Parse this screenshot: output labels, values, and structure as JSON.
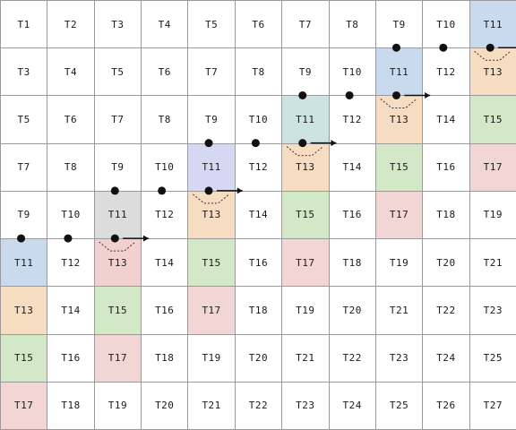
{
  "grid": {
    "cols": 11,
    "rows": 9,
    "cells": [
      [
        "T1",
        "T2",
        "T3",
        "T4",
        "T5",
        "T6",
        "T7",
        "T8",
        "T9",
        "T10",
        "T11"
      ],
      [
        "T3",
        "T4",
        "T5",
        "T6",
        "T7",
        "T8",
        "T9",
        "T10",
        "T11",
        "T12",
        "T13"
      ],
      [
        "T5",
        "T6",
        "T7",
        "T8",
        "T9",
        "T10",
        "T11",
        "T12",
        "T13",
        "T14",
        "T15"
      ],
      [
        "T7",
        "T8",
        "T9",
        "T10",
        "T11",
        "T12",
        "T13",
        "T14",
        "T15",
        "T16",
        "T17"
      ],
      [
        "T9",
        "T10",
        "T11",
        "T12",
        "T13",
        "T14",
        "T15",
        "T16",
        "T17",
        "T18",
        "T19"
      ],
      [
        "T11",
        "T12",
        "T13",
        "T14",
        "T15",
        "T16",
        "T17",
        "T18",
        "T19",
        "T20",
        "T21"
      ],
      [
        "T13",
        "T14",
        "T15",
        "T16",
        "T17",
        "T18",
        "T19",
        "T20",
        "T21",
        "T22",
        "T23"
      ],
      [
        "T15",
        "T16",
        "T17",
        "T18",
        "T19",
        "T20",
        "T21",
        "T22",
        "T23",
        "T24",
        "T25"
      ],
      [
        "T17",
        "T18",
        "T19",
        "T20",
        "T21",
        "T22",
        "T23",
        "T24",
        "T25",
        "T26",
        "T27"
      ]
    ],
    "highlights": [
      {
        "row": 0,
        "col": 10,
        "color": "#c9d9ee"
      },
      {
        "row": 1,
        "col": 8,
        "color": "#c9d9ee"
      },
      {
        "row": 1,
        "col": 10,
        "color": "#f6dcc0"
      },
      {
        "row": 2,
        "col": 6,
        "color": "#cde3e3"
      },
      {
        "row": 2,
        "col": 8,
        "color": "#f6dcc0"
      },
      {
        "row": 2,
        "col": 10,
        "color": "#d3e8c6"
      },
      {
        "row": 3,
        "col": 4,
        "color": "#d5d8f2"
      },
      {
        "row": 3,
        "col": 6,
        "color": "#f6dcc0"
      },
      {
        "row": 3,
        "col": 8,
        "color": "#d3e8c6"
      },
      {
        "row": 3,
        "col": 10,
        "color": "#f2d5d5"
      },
      {
        "row": 4,
        "col": 2,
        "color": "#dcdcdc"
      },
      {
        "row": 4,
        "col": 4,
        "color": "#f6dcc0"
      },
      {
        "row": 4,
        "col": 6,
        "color": "#d3e8c6"
      },
      {
        "row": 4,
        "col": 8,
        "color": "#f2d5d5"
      },
      {
        "row": 5,
        "col": 0,
        "color": "#c9d9ee"
      },
      {
        "row": 5,
        "col": 2,
        "color": "#f2d0d0"
      },
      {
        "row": 5,
        "col": 4,
        "color": "#d3e8c6"
      },
      {
        "row": 5,
        "col": 6,
        "color": "#f2d5d5"
      },
      {
        "row": 6,
        "col": 0,
        "color": "#f6dcc0"
      },
      {
        "row": 6,
        "col": 2,
        "color": "#d3e8c6"
      },
      {
        "row": 6,
        "col": 4,
        "color": "#f2d5d5"
      },
      {
        "row": 7,
        "col": 0,
        "color": "#d3e8c6"
      },
      {
        "row": 7,
        "col": 2,
        "color": "#f2d5d5"
      },
      {
        "row": 8,
        "col": 0,
        "color": "#f2d5d5"
      }
    ],
    "paths": [
      {
        "row": 0,
        "start_col": 8,
        "end_col": 10,
        "arrow": true
      },
      {
        "row": 1,
        "start_col": 6,
        "end_col": 8,
        "arrow": true
      },
      {
        "row": 2,
        "start_col": 4,
        "end_col": 6,
        "arrow": true
      },
      {
        "row": 3,
        "start_col": 2,
        "end_col": 4,
        "arrow": true
      },
      {
        "row": 4,
        "start_col": 0,
        "end_col": 2,
        "arrow": true
      }
    ]
  }
}
